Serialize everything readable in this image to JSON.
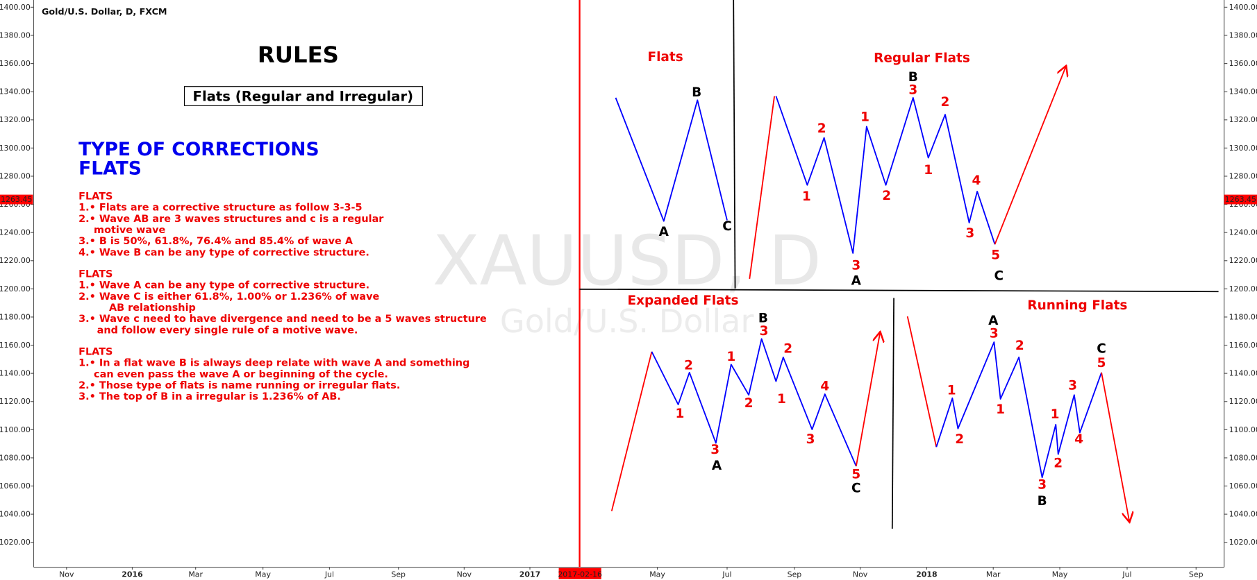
{
  "header": {
    "title": "Gold/U.S. Dollar, D, FXCM"
  },
  "watermark": {
    "symbol": "XAUUSD, D",
    "name": "Gold/U.S. Dollar"
  },
  "price_axis": {
    "ticks": [
      "1400.00",
      "1380.00",
      "1360.00",
      "1340.00",
      "1320.00",
      "1300.00",
      "1280.00",
      "1260.00",
      "1240.00",
      "1220.00",
      "1200.00",
      "1180.00",
      "1160.00",
      "1140.00",
      "1120.00",
      "1100.00",
      "1080.00",
      "1060.00",
      "1040.00",
      "1020.00"
    ],
    "current": "1263.45"
  },
  "time_axis": {
    "labels": [
      "Nov",
      "2016",
      "Mar",
      "May",
      "Jul",
      "Sep",
      "Nov",
      "2017",
      "May",
      "Jul",
      "Sep",
      "Nov",
      "2018",
      "Mar",
      "May",
      "Jul",
      "Sep"
    ],
    "marker": "2017-02-16"
  },
  "rules": {
    "title": "RULES",
    "subtitle": "Flats (Regular and Irregular)",
    "heading": [
      "TYPE OF CORRECTIONS",
      "FLATS"
    ],
    "sections": [
      [
        "FLATS",
        "1.• Flats are a corrective structure as follow 3-3-5",
        "2.• Wave AB are 3 waves structures and c is a regular",
        "motive wave",
        "3.• B is 50%, 61.8%, 76.4% and 85.4% of wave A",
        "4.• Wave B can be any type of corrective structure."
      ],
      [
        "FLATS",
        "1.• Wave A can be any type of corrective structure.",
        "2.• Wave C is either 61.8%, 1.00% or 1.236% of wave",
        "AB relationship",
        "3.• Wave c need to have divergence and need to be a 5 waves structure",
        "and follow every single rule of a motive wave."
      ],
      [
        "FLATS",
        "1.• In a flat wave B is always deep relate with wave A and something",
        "can even pass the wave A or beginning of the cycle.",
        "2.• Those type of flats is name running or irregular flats.",
        "3.• The top of B in a irregular is 1.236% of AB."
      ]
    ]
  },
  "drawings": {
    "flats": {
      "title": "Flats",
      "labels": [
        "B",
        "A",
        "C"
      ]
    },
    "regular": {
      "title": "Regular Flats",
      "labels": [
        "B",
        "3",
        "2",
        "1",
        "2",
        "1",
        "1",
        "2",
        "4",
        "3",
        "3",
        "A",
        "5",
        "C"
      ]
    },
    "expanded": {
      "title": "Expanded Flats",
      "labels": [
        "B",
        "3",
        "1",
        "2",
        "2",
        "1",
        "2",
        "1",
        "4",
        "3",
        "3",
        "A",
        "5",
        "C"
      ]
    },
    "running": {
      "title": "Running Flats",
      "labels": [
        "A",
        "3",
        "2",
        "1",
        "2",
        "1",
        "1",
        "3",
        "4",
        "2",
        "3",
        "B",
        "C",
        "5"
      ]
    }
  }
}
